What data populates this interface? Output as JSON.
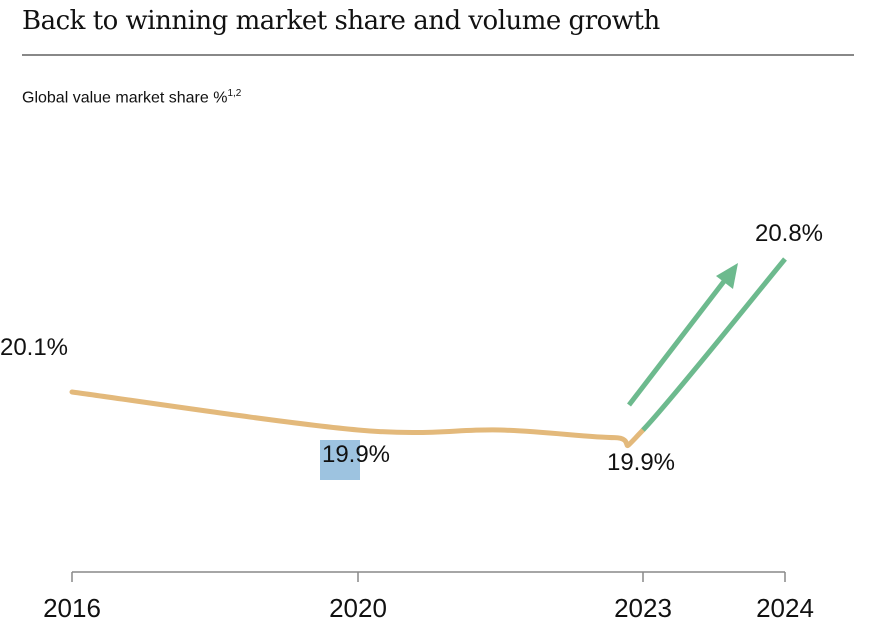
{
  "title": "Back to winning market share and volume growth",
  "chart_data": {
    "type": "line",
    "title": "Global value market share %",
    "title_superscript": "1,2",
    "xlabel": "",
    "ylabel": "",
    "ticks": [
      2016,
      2020,
      2023,
      2024
    ],
    "tick_labels": [
      "2016",
      "2020",
      "2023",
      "2024"
    ],
    "series": [
      {
        "name": "Global value market share",
        "x": [
          2016,
          2020,
          2021.5,
          2022.7,
          2023,
          2024
        ],
        "y": [
          20.1,
          19.9,
          19.9,
          19.86,
          19.9,
          20.8
        ]
      }
    ],
    "data_labels": [
      {
        "x": 2016,
        "text": "20.1%"
      },
      {
        "x": 2020,
        "text": "19.9%"
      },
      {
        "x": 2023,
        "text": "19.9%"
      },
      {
        "x": 2024,
        "text": "20.8%"
      }
    ],
    "colors": {
      "line": "#e3b97b",
      "growth": "#6dba8e",
      "axis": "#888888"
    }
  }
}
